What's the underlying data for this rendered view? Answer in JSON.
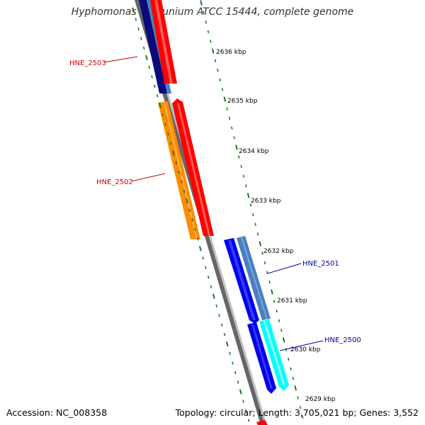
{
  "title": "Hyphomonas neptunium ATCC 15444, complete genome",
  "footer": {
    "accession": "Accession: NC_008358",
    "summary": "Topology: circular; Length: 3,705,021 bp; Genes: 3,552"
  },
  "ruler": {
    "labels": [
      "2636 kbp",
      "2635 kbp",
      "2634 kbp",
      "2633 kbp",
      "2632 kbp",
      "2631 kbp",
      "2630 kbp",
      "2629 kbp"
    ]
  },
  "genes": {
    "hne_2503": "HNE_2503",
    "hne_2502": "HNE_2502",
    "hne_2501": "HNE_2501",
    "hne_2500": "HNE_2500"
  },
  "colors": {
    "forward_gene": "#ff0000",
    "reverse_gene": "#0000ee",
    "reverse_gene_dark": "#0a0a7a",
    "forward_cds": "#ff8c00",
    "reverse_cds": "#4a7fc0",
    "reverse_cds_light": "#00ffff",
    "backbone": "#777777",
    "ticks": "#1a7a1a",
    "label_forward": "#cc0000",
    "label_reverse": "#0000aa"
  }
}
